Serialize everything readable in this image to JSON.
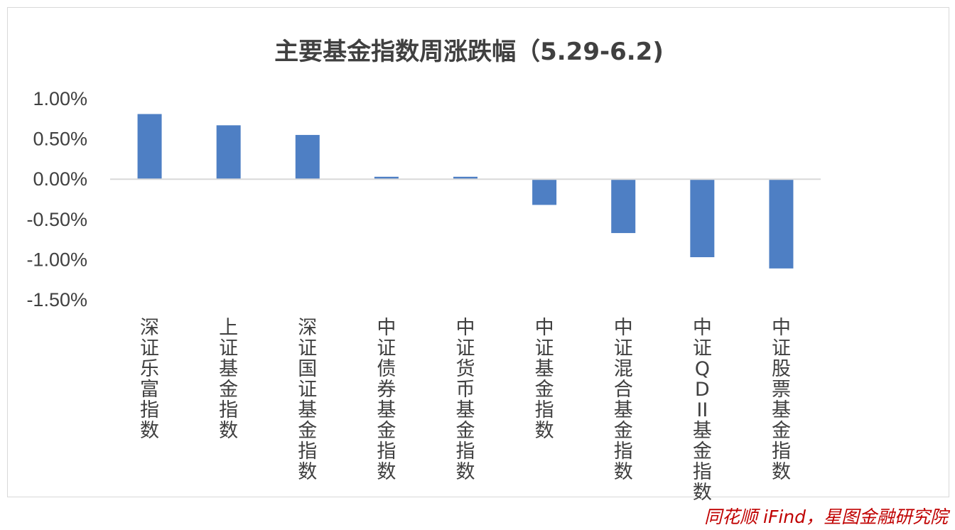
{
  "chart_data": {
    "type": "bar",
    "title": "主要基金指数周涨跌幅（5.29-6.2)",
    "xlabel": "",
    "ylabel": "",
    "categories": [
      "深证乐富指数",
      "上证基金指数",
      "深证国证基金指数",
      "中证债券基金指数",
      "中证货币基金指数",
      "中证基金指数",
      "中证混合基金指数",
      "中证QDII基金指数",
      "中证股票基金指数"
    ],
    "values": [
      0.81,
      0.67,
      0.55,
      0.03,
      0.03,
      -0.32,
      -0.67,
      -0.97,
      -1.11
    ],
    "ylim": [
      -1.5,
      1.0
    ],
    "yticks": [
      "1.00%",
      "0.50%",
      "0.00%",
      "-0.50%",
      "-1.00%",
      "-1.50%"
    ],
    "grid": false,
    "bar_color": "#4e7fc4"
  },
  "source": "同花顺 iFind，星图金融研究院"
}
